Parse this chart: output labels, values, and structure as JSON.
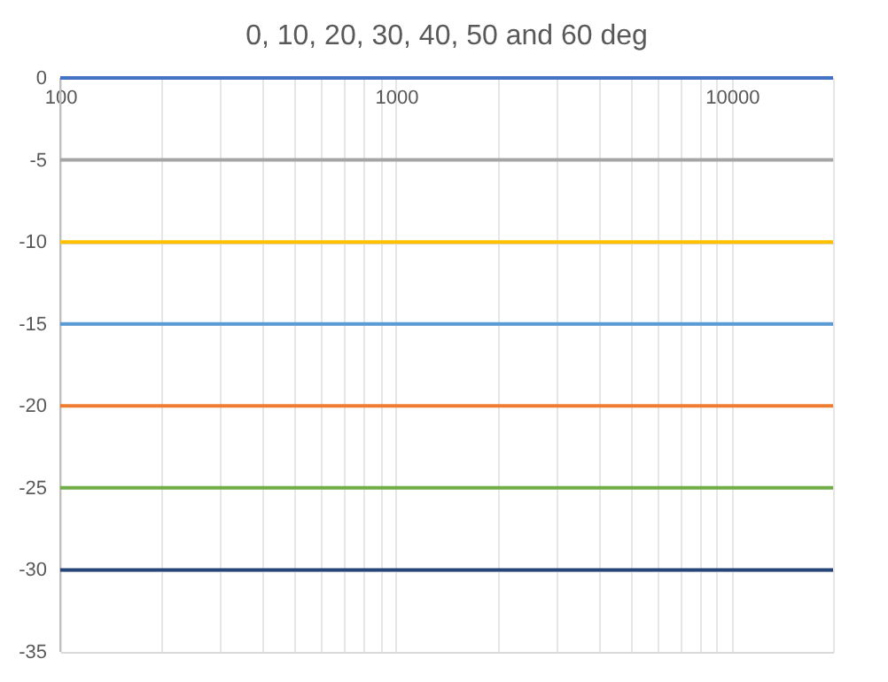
{
  "chart_data": {
    "type": "line",
    "title": "0, 10, 20, 30, 40, 50 and 60 deg",
    "x": [
      100,
      20000
    ],
    "series": [
      {
        "color": "#4472c4",
        "values": [
          0,
          0
        ]
      },
      {
        "color": "#a5a5a5",
        "values": [
          -5,
          -5
        ]
      },
      {
        "color": "#ffc000",
        "values": [
          -10,
          -10
        ]
      },
      {
        "color": "#5b9bd5",
        "values": [
          -15,
          -15
        ]
      },
      {
        "color": "#ed7d31",
        "values": [
          -20,
          -20
        ]
      },
      {
        "color": "#70ad47",
        "values": [
          -25,
          -25
        ]
      },
      {
        "color": "#264478",
        "values": [
          -30,
          -30
        ]
      }
    ],
    "log": "x",
    "xlim": [
      100,
      20000
    ],
    "xticks": [
      100,
      {
        "value": 200,
        "label": null
      },
      {
        "value": 300,
        "label": null
      },
      {
        "value": 400,
        "label": null
      },
      {
        "value": 500,
        "label": null
      },
      {
        "value": 600,
        "label": null
      },
      {
        "value": 700,
        "label": null
      },
      {
        "value": 800,
        "label": null
      },
      {
        "value": 900,
        "label": null
      },
      1000,
      {
        "value": 2000,
        "label": null
      },
      {
        "value": 3000,
        "label": null
      },
      {
        "value": 4000,
        "label": null
      },
      {
        "value": 5000,
        "label": null
      },
      {
        "value": 6000,
        "label": null
      },
      {
        "value": 7000,
        "label": null
      },
      {
        "value": 8000,
        "label": null
      },
      {
        "value": 9000,
        "label": null
      },
      10000,
      {
        "value": 20000,
        "label": null
      }
    ],
    "ylim": [
      -35,
      0
    ],
    "yticks": [
      -35,
      -30,
      -25,
      -20,
      -15,
      -10,
      -5,
      0
    ],
    "grid": true,
    "marker": "none",
    "line_style": "solid"
  }
}
